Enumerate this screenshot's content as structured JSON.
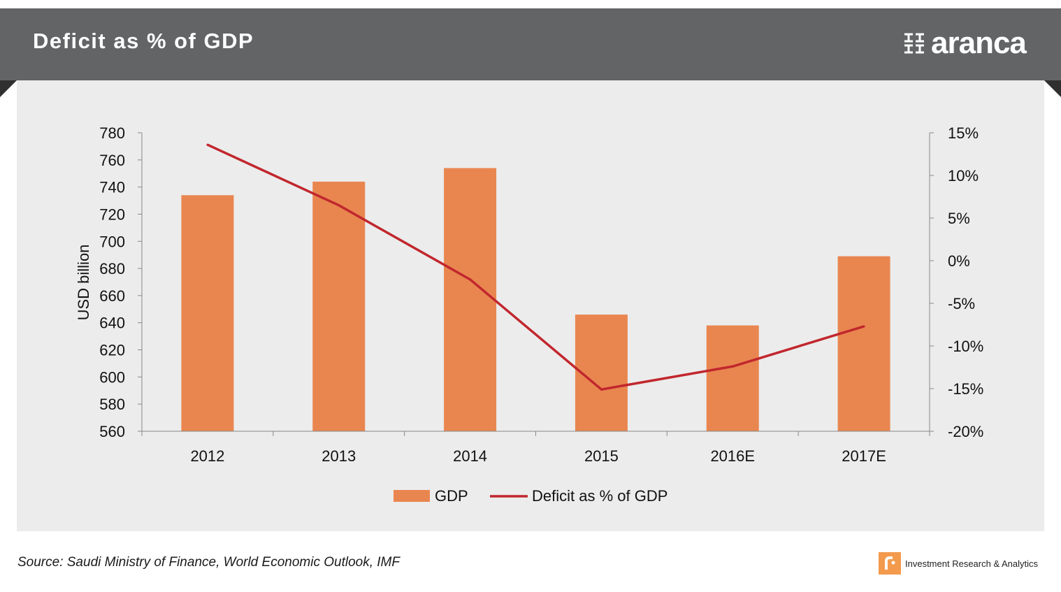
{
  "header": {
    "title": "Deficit as % of GDP",
    "logo_text": "aranca"
  },
  "colors": {
    "header_bg": "#636466",
    "panel_bg": "#ececec",
    "bar": "#e98650",
    "line": "#c1272d",
    "axis": "#888888"
  },
  "chart_data": {
    "type": "bar",
    "title": "Deficit as % of GDP",
    "categories": [
      "2012",
      "2013",
      "2014",
      "2015",
      "2016E",
      "2017E"
    ],
    "series": [
      {
        "name": "GDP",
        "type": "bar",
        "axis": "left",
        "values": [
          734,
          744,
          754,
          646,
          638,
          689
        ]
      },
      {
        "name": "Deficit as % of GDP",
        "type": "line",
        "axis": "right",
        "values": [
          13.6,
          6.5,
          -2.2,
          -15.1,
          -12.4,
          -7.7
        ]
      }
    ],
    "ylabel": "USD billion",
    "ylim": [
      560,
      780
    ],
    "yticks": [
      780,
      760,
      740,
      720,
      700,
      680,
      660,
      640,
      620,
      600,
      580,
      560
    ],
    "y2lim": [
      -20,
      15
    ],
    "y2ticks": [
      "15%",
      "10%",
      "5%",
      "0%",
      "-5%",
      "-10%",
      "-15%",
      "-20%"
    ],
    "legend": [
      {
        "label": "GDP",
        "kind": "bar"
      },
      {
        "label": "Deficit as % of GDP",
        "kind": "line"
      }
    ],
    "legend_position": "bottom"
  },
  "footer": {
    "source": "Source: Saudi Ministry of Finance, World Economic Outlook, IMF",
    "brand": "Investment  Research & Analytics"
  }
}
